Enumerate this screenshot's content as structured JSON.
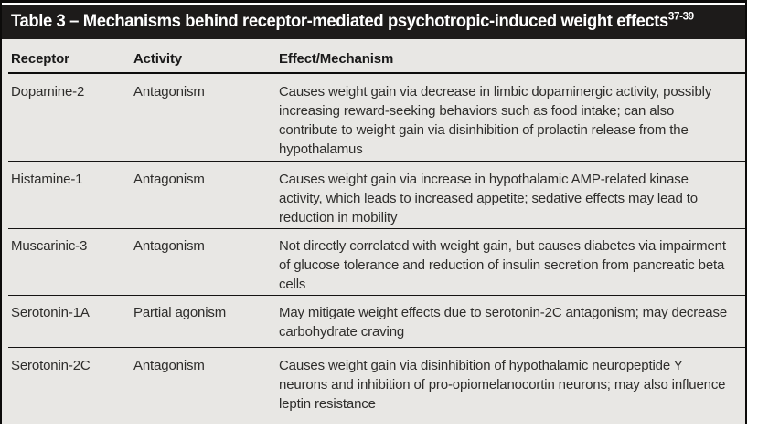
{
  "table": {
    "title": "Table 3 – Mechanisms behind receptor-mediated psychotropic-induced weight effects",
    "title_superscript": "37-39",
    "columns": {
      "receptor": "Receptor",
      "activity": "Activity",
      "effect": "Effect/Mechanism"
    },
    "rows": [
      {
        "receptor": "Dopamine-2",
        "activity": "Antagonism",
        "effect": "Causes weight gain via decrease in limbic dopaminergic activity, possibly increasing reward-seeking behaviors such as food intake; can also contribute to weight gain via disinhibition of prolactin release from the hypothalamus"
      },
      {
        "receptor": "Histamine-1",
        "activity": "Antagonism",
        "effect": "Causes weight gain via increase in hypothalamic AMP-related kinase activity, which leads to increased appetite; sedative effects may lead to reduction in mobility"
      },
      {
        "receptor": "Muscarinic-3",
        "activity": "Antagonism",
        "effect": "Not directly correlated with weight gain, but causes diabetes via impairment of glucose tolerance and reduction of insulin secretion from pancreatic beta cells"
      },
      {
        "receptor": "Serotonin-1A",
        "activity": "Partial agonism",
        "effect": "May mitigate weight effects due to serotonin-2C antagonism; may decrease carbohydrate craving"
      },
      {
        "receptor": "Serotonin-2C",
        "activity": "Antagonism",
        "effect": "Causes weight gain via disinhibition of hypothalamic neuropeptide Y neurons and inhibition of pro-opiomelanocortin neurons; may also influence leptin resistance"
      }
    ],
    "colors": {
      "title_bar_bg": "#1d1b1a",
      "title_text": "#ffffff",
      "body_bg": "#e8e7e4",
      "rule": "#0d0d0d",
      "text": "#2e2d2b"
    }
  }
}
